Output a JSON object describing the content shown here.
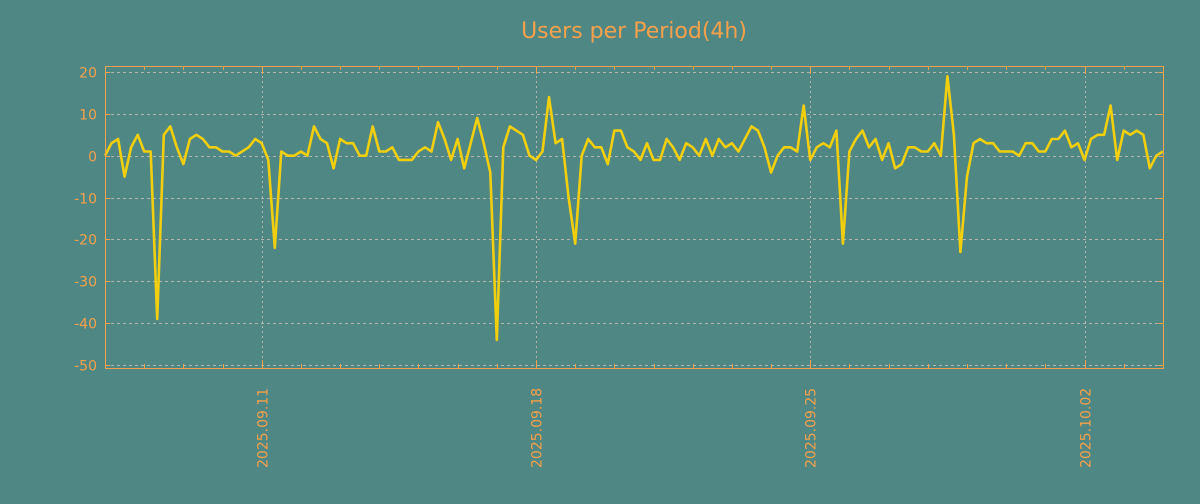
{
  "chart_data": {
    "type": "line",
    "title": "Users per Period(4h)",
    "xlabel": "",
    "ylabel": "",
    "start": "2025-09-07 00:00",
    "period_hours": 4,
    "ylim": [
      -51,
      22
    ],
    "yticks": [
      20,
      10,
      0,
      -10,
      -20,
      -30,
      -40,
      -50
    ],
    "ytick_labels": [
      "20",
      "10",
      "0",
      "-10",
      "-20",
      "-30",
      "-40",
      "-50"
    ],
    "xticks": [
      {
        "label": "2025.09.11",
        "index": 24
      },
      {
        "label": "2025.09.18",
        "index": 66
      },
      {
        "label": "2025.09.25",
        "index": 108
      },
      {
        "label": "2025.10.02",
        "index": 150
      }
    ],
    "grid": true,
    "series": [
      {
        "name": "users",
        "color": "#f2cf0e",
        "values": [
          0,
          3,
          4,
          -5,
          2,
          5,
          1,
          1,
          -39,
          5,
          7,
          2,
          -2,
          4,
          5,
          4,
          2,
          2,
          1,
          1,
          0,
          1,
          2,
          4,
          3,
          -1,
          -22,
          1,
          0,
          0,
          1,
          0,
          7,
          4,
          3,
          -3,
          4,
          3,
          3,
          0,
          0,
          7,
          1,
          1,
          2,
          -1,
          -1,
          -1,
          1,
          2,
          1,
          8,
          4,
          -1,
          4,
          -3,
          3,
          9,
          3,
          -4,
          -44,
          2,
          7,
          6,
          5,
          0,
          -1,
          1,
          14,
          3,
          4,
          -10,
          -21,
          0,
          4,
          2,
          2,
          -2,
          6,
          6,
          2,
          1,
          -1,
          3,
          -1,
          -1,
          4,
          2,
          -1,
          3,
          2,
          0,
          4,
          0,
          4,
          2,
          3,
          1,
          4,
          7,
          6,
          2,
          -4,
          0,
          2,
          2,
          1,
          12,
          -1,
          2,
          3,
          2,
          6,
          -21,
          1,
          4,
          6,
          2,
          4,
          -1,
          3,
          -3,
          -2,
          2,
          2,
          1,
          1,
          3,
          0,
          19,
          5,
          -23,
          -5,
          3,
          4,
          3,
          3,
          1,
          1,
          1,
          0,
          3,
          3,
          1,
          1,
          4,
          4,
          6,
          2,
          3,
          -1,
          4,
          5,
          5,
          12,
          -1,
          6,
          5,
          6,
          5,
          -3,
          0,
          1
        ]
      }
    ],
    "colors": {
      "background": "#4f8784",
      "axis": "#f5a04a",
      "grid": "#b5b5b0"
    }
  }
}
